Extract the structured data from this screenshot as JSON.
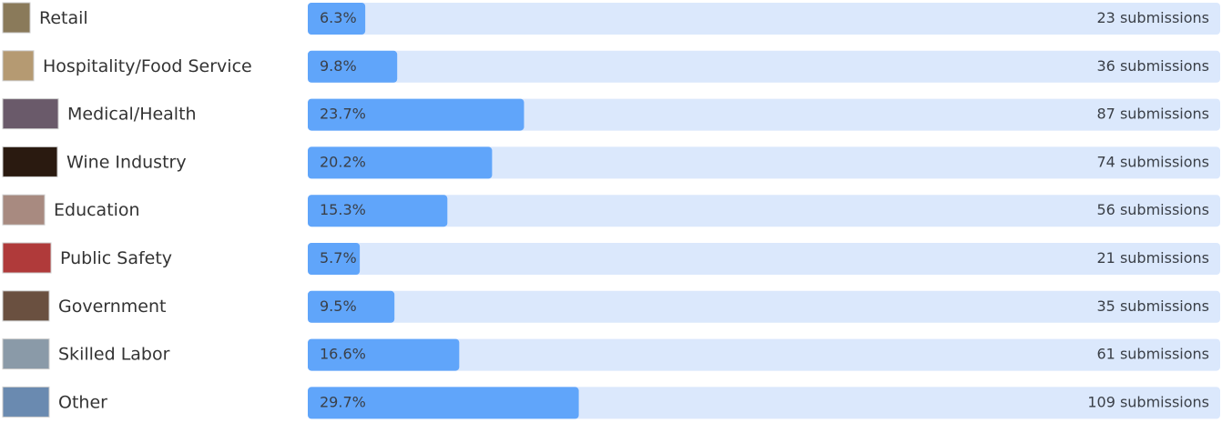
{
  "chart_data": {
    "type": "bar",
    "orientation": "horizontal",
    "categories": [
      "Retail",
      "Hospitality/Food Service",
      "Medical/Health",
      "Wine Industry",
      "Education",
      "Public Safety",
      "Government",
      "Skilled Labor",
      "Other"
    ],
    "values": [
      6.3,
      9.8,
      23.7,
      20.2,
      15.3,
      5.7,
      9.5,
      16.6,
      29.7
    ],
    "value_labels": [
      "6.3%",
      "9.8%",
      "23.7%",
      "20.2%",
      "15.3%",
      "5.7%",
      "9.5%",
      "16.6%",
      "29.7%"
    ],
    "submissions": [
      23,
      36,
      87,
      74,
      56,
      21,
      35,
      61,
      109
    ],
    "submission_labels": [
      "23 submissions",
      "36 submissions",
      "87 submissions",
      "74 submissions",
      "56 submissions",
      "21 submissions",
      "35 submissions",
      "61 submissions",
      "109 submissions"
    ],
    "xlim": [
      0,
      100
    ],
    "color": "#60a5fa",
    "track_color": "#dbe8fc"
  }
}
